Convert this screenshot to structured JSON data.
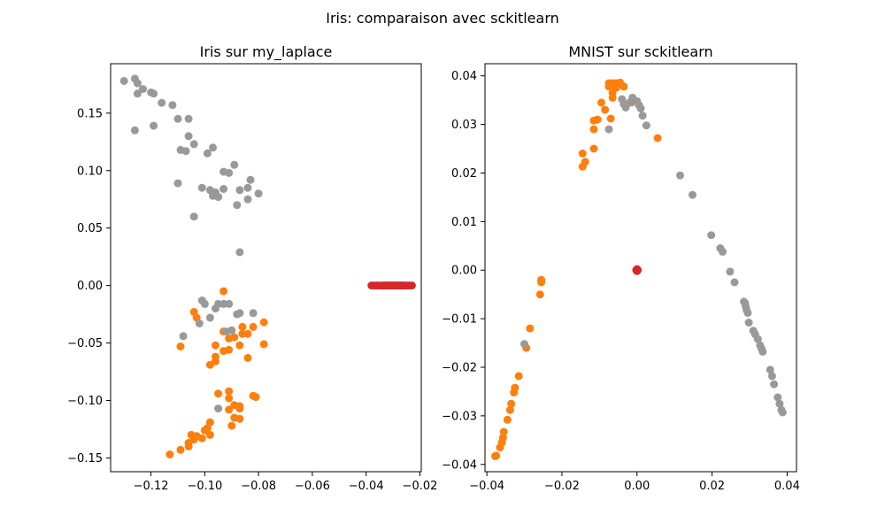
{
  "figure": {
    "suptitle": "Iris: comparaison avec sckitlearn"
  },
  "colors": {
    "class0": "#d62728",
    "class1": "#ff7f0e",
    "class2": "#999999"
  },
  "chart_data": [
    {
      "type": "scatter",
      "title": "Iris sur my_laplace",
      "xlabel": "",
      "ylabel": "",
      "xlim": [
        -0.135,
        -0.0195
      ],
      "ylim": [
        -0.162,
        0.193
      ],
      "xticks": [
        -0.12,
        -0.1,
        -0.08,
        -0.06,
        -0.04,
        -0.02
      ],
      "xtick_labels": [
        "−0.12",
        "−0.10",
        "−0.08",
        "−0.06",
        "−0.04",
        "−0.02"
      ],
      "yticks": [
        -0.15,
        -0.1,
        -0.05,
        0.0,
        0.05,
        0.1,
        0.15
      ],
      "ytick_labels": [
        "−0.15",
        "−0.10",
        "−0.05",
        "0.00",
        "0.05",
        "0.10",
        "0.15"
      ],
      "grid": false,
      "series": [
        {
          "color": "#d62728",
          "points": [
            [
              -0.038,
              0
            ],
            [
              -0.037,
              0
            ],
            [
              -0.036,
              0
            ],
            [
              -0.035,
              0
            ],
            [
              -0.034,
              0
            ],
            [
              -0.0335,
              0
            ],
            [
              -0.033,
              0
            ],
            [
              -0.0325,
              0
            ],
            [
              -0.032,
              0
            ],
            [
              -0.0315,
              0
            ],
            [
              -0.031,
              0
            ],
            [
              -0.0305,
              0
            ],
            [
              -0.03,
              0
            ],
            [
              -0.0295,
              0
            ],
            [
              -0.029,
              0
            ],
            [
              -0.0285,
              0
            ],
            [
              -0.028,
              0
            ],
            [
              -0.0275,
              0
            ],
            [
              -0.027,
              0
            ],
            [
              -0.0265,
              0
            ],
            [
              -0.026,
              0
            ],
            [
              -0.0255,
              0
            ],
            [
              -0.025,
              0
            ],
            [
              -0.024,
              0
            ],
            [
              -0.023,
              0
            ]
          ]
        },
        {
          "color": "#ff7f0e",
          "points": [
            [
              -0.093,
              -0.005
            ],
            [
              -0.104,
              -0.023
            ],
            [
              -0.103,
              -0.028
            ],
            [
              -0.109,
              -0.053
            ],
            [
              -0.096,
              -0.052
            ],
            [
              -0.093,
              -0.04
            ],
            [
              -0.091,
              -0.046
            ],
            [
              -0.089,
              -0.045
            ],
            [
              -0.086,
              -0.036
            ],
            [
              -0.086,
              -0.042
            ],
            [
              -0.084,
              -0.042
            ],
            [
              -0.082,
              -0.036
            ],
            [
              -0.078,
              -0.032
            ],
            [
              -0.078,
              -0.051
            ],
            [
              -0.087,
              -0.052
            ],
            [
              -0.091,
              -0.056
            ],
            [
              -0.093,
              -0.057
            ],
            [
              -0.084,
              -0.063
            ],
            [
              -0.096,
              -0.062
            ],
            [
              -0.096,
              -0.066
            ],
            [
              -0.098,
              -0.069
            ],
            [
              -0.095,
              -0.094
            ],
            [
              -0.091,
              -0.092
            ],
            [
              -0.091,
              -0.098
            ],
            [
              -0.089,
              -0.104
            ],
            [
              -0.087,
              -0.105
            ],
            [
              -0.087,
              -0.107
            ],
            [
              -0.091,
              -0.108
            ],
            [
              -0.081,
              -0.097
            ],
            [
              -0.082,
              -0.096
            ],
            [
              -0.089,
              -0.115
            ],
            [
              -0.087,
              -0.116
            ],
            [
              -0.09,
              -0.122
            ],
            [
              -0.098,
              -0.119
            ],
            [
              -0.099,
              -0.124
            ],
            [
              -0.1,
              -0.126
            ],
            [
              -0.098,
              -0.13
            ],
            [
              -0.101,
              -0.133
            ],
            [
              -0.103,
              -0.131
            ],
            [
              -0.105,
              -0.13
            ],
            [
              -0.104,
              -0.134
            ],
            [
              -0.106,
              -0.137
            ],
            [
              -0.106,
              -0.14
            ],
            [
              -0.109,
              -0.143
            ],
            [
              -0.113,
              -0.147
            ]
          ]
        },
        {
          "color": "#999999",
          "points": [
            [
              -0.13,
              0.178
            ],
            [
              -0.126,
              0.18
            ],
            [
              -0.125,
              0.176
            ],
            [
              -0.123,
              0.171
            ],
            [
              -0.125,
              0.167
            ],
            [
              -0.12,
              0.168
            ],
            [
              -0.119,
              0.167
            ],
            [
              -0.116,
              0.159
            ],
            [
              -0.112,
              0.157
            ],
            [
              -0.11,
              0.145
            ],
            [
              -0.106,
              0.145
            ],
            [
              -0.126,
              0.135
            ],
            [
              -0.119,
              0.139
            ],
            [
              -0.106,
              0.13
            ],
            [
              -0.104,
              0.123
            ],
            [
              -0.109,
              0.118
            ],
            [
              -0.107,
              0.117
            ],
            [
              -0.099,
              0.115
            ],
            [
              -0.097,
              0.12
            ],
            [
              -0.093,
              0.099
            ],
            [
              -0.091,
              0.098
            ],
            [
              -0.089,
              0.105
            ],
            [
              -0.087,
              0.083
            ],
            [
              -0.084,
              0.085
            ],
            [
              -0.083,
              0.092
            ],
            [
              -0.08,
              0.08
            ],
            [
              -0.084,
              0.075
            ],
            [
              -0.088,
              0.07
            ],
            [
              -0.093,
              0.084
            ],
            [
              -0.095,
              0.077
            ],
            [
              -0.096,
              0.081
            ],
            [
              -0.097,
              0.078
            ],
            [
              -0.098,
              0.083
            ],
            [
              -0.101,
              0.085
            ],
            [
              -0.11,
              0.089
            ],
            [
              -0.104,
              0.06
            ],
            [
              -0.087,
              0.029
            ],
            [
              -0.101,
              -0.013
            ],
            [
              -0.1,
              -0.016
            ],
            [
              -0.096,
              -0.02
            ],
            [
              -0.095,
              -0.016
            ],
            [
              -0.093,
              -0.016
            ],
            [
              -0.091,
              -0.016
            ],
            [
              -0.087,
              -0.024
            ],
            [
              -0.088,
              -0.025
            ],
            [
              -0.082,
              -0.024
            ],
            [
              -0.098,
              -0.028
            ],
            [
              -0.102,
              -0.033
            ],
            [
              -0.108,
              -0.044
            ],
            [
              -0.092,
              -0.04
            ],
            [
              -0.09,
              -0.039
            ],
            [
              -0.095,
              -0.107
            ]
          ]
        }
      ]
    },
    {
      "type": "scatter",
      "title": "MNIST sur sckitlearn",
      "xlabel": "",
      "ylabel": "",
      "xlim": [
        -0.0405,
        0.0425
      ],
      "ylim": [
        -0.0415,
        0.0425
      ],
      "xticks": [
        -0.04,
        -0.02,
        0.0,
        0.02,
        0.04
      ],
      "xtick_labels": [
        "−0.04",
        "−0.02",
        "0.00",
        "0.02",
        "0.04"
      ],
      "yticks": [
        -0.04,
        -0.03,
        -0.02,
        -0.01,
        0.0,
        0.01,
        0.02,
        0.03,
        0.04
      ],
      "ytick_labels": [
        "−0.04",
        "−0.03",
        "−0.02",
        "−0.01",
        "0.00",
        "0.01",
        "0.02",
        "0.03",
        "0.04"
      ],
      "grid": false,
      "series": [
        {
          "color": "#d62728",
          "points": [
            [
              0.0,
              0.0
            ],
            [
              0.0002,
              0.0
            ],
            [
              -0.0002,
              0.0
            ],
            [
              0.0,
              0.0002
            ],
            [
              0.0,
              -0.0002
            ]
          ]
        },
        {
          "color": "#ff7f0e",
          "points": [
            [
              -0.0075,
              0.0385
            ],
            [
              -0.0065,
              0.0385
            ],
            [
              -0.0055,
              0.0385
            ],
            [
              -0.0045,
              0.0386
            ],
            [
              -0.0075,
              0.0378
            ],
            [
              -0.0055,
              0.0376
            ],
            [
              -0.0035,
              0.0378
            ],
            [
              -0.0065,
              0.0365
            ],
            [
              -0.0095,
              0.0345
            ],
            [
              -0.0085,
              0.033
            ],
            [
              -0.0065,
              0.0355
            ],
            [
              -0.0105,
              0.031
            ],
            [
              -0.0115,
              0.0308
            ],
            [
              -0.0115,
              0.029
            ],
            [
              -0.007,
              0.0312
            ],
            [
              -0.0115,
              0.025
            ],
            [
              -0.0145,
              0.024
            ],
            [
              -0.0138,
              0.0223
            ],
            [
              -0.0145,
              0.0213
            ],
            [
              0.0055,
              0.0272
            ],
            [
              -0.0015,
              0.0345
            ],
            [
              -0.0255,
              -0.002
            ],
            [
              -0.0255,
              -0.0025
            ],
            [
              -0.0258,
              -0.005
            ],
            [
              -0.0285,
              -0.012
            ],
            [
              -0.0295,
              -0.016
            ],
            [
              -0.0315,
              -0.0218
            ],
            [
              -0.0325,
              -0.0242
            ],
            [
              -0.0328,
              -0.0252
            ],
            [
              -0.0335,
              -0.0275
            ],
            [
              -0.0338,
              -0.0288
            ],
            [
              -0.0345,
              -0.0308
            ],
            [
              -0.0355,
              -0.0333
            ],
            [
              -0.0357,
              -0.0345
            ],
            [
              -0.036,
              -0.0355
            ],
            [
              -0.0365,
              -0.0365
            ],
            [
              -0.0375,
              -0.0382
            ],
            [
              -0.0378,
              -0.0383
            ]
          ]
        },
        {
          "color": "#999999",
          "points": [
            [
              -0.004,
              0.0352
            ],
            [
              -0.0035,
              0.0342
            ],
            [
              -0.003,
              0.0335
            ],
            [
              -0.002,
              0.0345
            ],
            [
              -0.0012,
              0.0355
            ],
            [
              0.0,
              0.0348
            ],
            [
              0.0005,
              0.034
            ],
            [
              0.001,
              0.0333
            ],
            [
              0.0015,
              0.0318
            ],
            [
              -0.0075,
              0.029
            ],
            [
              0.0025,
              0.0298
            ],
            [
              0.0115,
              0.0195
            ],
            [
              0.0148,
              0.0155
            ],
            [
              0.0198,
              0.0072
            ],
            [
              0.0222,
              0.0045
            ],
            [
              0.0228,
              0.0038
            ],
            [
              0.0248,
              -0.0003
            ],
            [
              0.026,
              -0.0025
            ],
            [
              0.0285,
              -0.0065
            ],
            [
              0.0288,
              -0.0068
            ],
            [
              0.029,
              -0.0075
            ],
            [
              0.0292,
              -0.0082
            ],
            [
              0.0295,
              -0.0088
            ],
            [
              0.0298,
              -0.0108
            ],
            [
              0.031,
              -0.0125
            ],
            [
              0.0315,
              -0.0132
            ],
            [
              0.0322,
              -0.0142
            ],
            [
              0.0328,
              -0.0155
            ],
            [
              0.0332,
              -0.0162
            ],
            [
              0.0335,
              -0.0168
            ],
            [
              0.0355,
              -0.0205
            ],
            [
              0.036,
              -0.0218
            ],
            [
              0.0365,
              -0.0235
            ],
            [
              0.0375,
              -0.0262
            ],
            [
              0.038,
              -0.0275
            ],
            [
              0.0385,
              -0.0288
            ],
            [
              0.0388,
              -0.0293
            ],
            [
              -0.03,
              -0.0152
            ]
          ]
        }
      ]
    }
  ]
}
